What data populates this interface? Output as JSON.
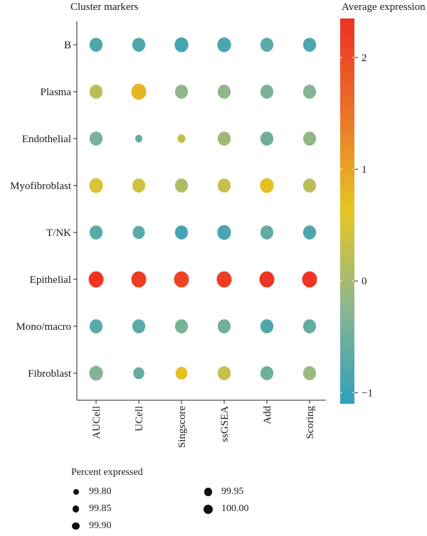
{
  "chart_data": {
    "type": "dot",
    "title": "Cluster markers",
    "columns": [
      "AUCell",
      "UCell",
      "Singscore",
      "ssGSEA",
      "Add",
      "Scoring"
    ],
    "rows": [
      "B",
      "Plasma",
      "Endothelial",
      "Myofibroblast",
      "T/NK",
      "Epithelial",
      "Mono/macro",
      "Fibroblast"
    ],
    "average_expression": [
      [
        -0.8,
        -0.8,
        -0.9,
        -0.85,
        -0.7,
        -0.8
      ],
      [
        0.2,
        0.8,
        -0.2,
        -0.2,
        -0.4,
        -0.3
      ],
      [
        -0.4,
        -0.6,
        0.3,
        -0.05,
        -0.5,
        -0.2
      ],
      [
        0.5,
        0.4,
        0.1,
        0.3,
        0.7,
        0.2
      ],
      [
        -0.7,
        -0.7,
        -0.9,
        -0.85,
        -0.6,
        -0.8
      ],
      [
        2.3,
        2.2,
        2.1,
        2.2,
        2.3,
        2.3
      ],
      [
        -0.7,
        -0.7,
        -0.4,
        -0.5,
        -0.8,
        -0.6
      ],
      [
        -0.3,
        -0.6,
        0.7,
        0.3,
        -0.5,
        -0.1
      ]
    ],
    "percent_expressed": [
      [
        99.95,
        99.95,
        99.97,
        99.97,
        99.95,
        99.95
      ],
      [
        99.95,
        100.0,
        99.95,
        99.95,
        99.95,
        99.95
      ],
      [
        99.95,
        99.8,
        99.82,
        99.95,
        99.95,
        99.95
      ],
      [
        99.97,
        99.95,
        99.95,
        99.95,
        99.97,
        99.95
      ],
      [
        99.95,
        99.93,
        99.95,
        99.97,
        99.95,
        99.95
      ],
      [
        100.0,
        100.0,
        100.0,
        100.0,
        100.0,
        100.0
      ],
      [
        99.95,
        99.95,
        99.95,
        99.95,
        99.95,
        99.95
      ],
      [
        99.97,
        99.9,
        99.92,
        99.95,
        99.95,
        99.95
      ]
    ],
    "colorbar": {
      "title": "Average expression",
      "range": [
        -1.1,
        2.35
      ],
      "ticks": [
        -1,
        0,
        1,
        2
      ],
      "tick_labels": [
        "−1",
        "0",
        "1",
        "2"
      ],
      "colors": [
        "#2f9fbf",
        "#8cb68e",
        "#e6c623",
        "#e97429",
        "#ee3124"
      ]
    },
    "size_legend": {
      "title": "Percent expressed",
      "values": [
        99.8,
        99.85,
        99.9,
        99.95,
        100.0
      ],
      "labels": [
        "99.80",
        "99.85",
        "99.90",
        "99.95",
        "100.00"
      ]
    },
    "grid": false,
    "legend_position": "right-and-bottom"
  }
}
